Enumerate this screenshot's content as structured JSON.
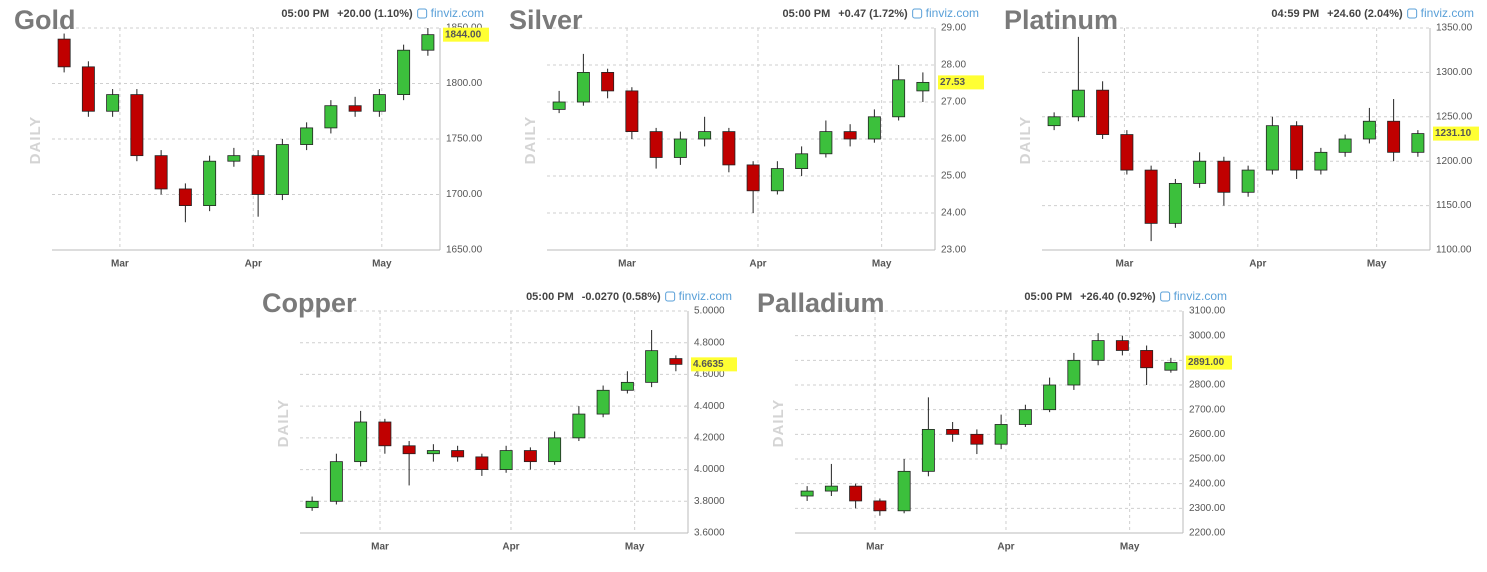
{
  "chart_data": [
    {
      "type": "candlestick",
      "title": "Gold",
      "time": "05:00 PM",
      "change": "+20.00 (1.10%)",
      "change_color": "#1a9c1a",
      "source": "finviz.com",
      "axis_label": "DAILY",
      "last_label": "1844.00",
      "up_color": "#3cc03c",
      "down_color": "#c00000",
      "open": [
        1840,
        1815,
        1775,
        1790,
        1735,
        1705,
        1690,
        1730,
        1735,
        1700,
        1745,
        1760,
        1780,
        1775,
        1790,
        1830
      ],
      "high": [
        1845,
        1820,
        1795,
        1795,
        1740,
        1710,
        1735,
        1742,
        1740,
        1750,
        1765,
        1785,
        1788,
        1795,
        1835,
        1850
      ],
      "low": [
        1810,
        1770,
        1770,
        1730,
        1700,
        1675,
        1685,
        1725,
        1680,
        1695,
        1740,
        1755,
        1770,
        1770,
        1785,
        1825
      ],
      "close": [
        1815,
        1775,
        1790,
        1735,
        1705,
        1690,
        1730,
        1735,
        1700,
        1745,
        1760,
        1780,
        1775,
        1790,
        1830,
        1844
      ],
      "ylim": [
        1650,
        1850
      ],
      "yticks": [
        {
          "value": 1650,
          "label": "1650.00"
        },
        {
          "value": 1700,
          "label": "1700.00"
        },
        {
          "value": 1750,
          "label": "1750.00"
        },
        {
          "value": 1800,
          "label": "1800.00"
        },
        {
          "value": 1850,
          "label": "1850.00"
        }
      ],
      "xlim": [
        -0.5,
        15.5
      ],
      "xticks": [
        {
          "value": 2.3,
          "label": "Mar"
        },
        {
          "value": 7.8,
          "label": "Apr"
        },
        {
          "value": 13.1,
          "label": "May"
        }
      ],
      "grid": true
    },
    {
      "type": "candlestick",
      "title": "Silver",
      "time": "05:00 PM",
      "change": "+0.47 (1.72%)",
      "change_color": "#1a9c1a",
      "source": "finviz.com",
      "axis_label": "DAILY",
      "last_label": "27.53",
      "up_color": "#3cc03c",
      "down_color": "#c00000",
      "open": [
        26.8,
        27.0,
        27.8,
        27.3,
        26.2,
        25.5,
        26.0,
        26.2,
        25.3,
        24.6,
        25.2,
        25.6,
        26.2,
        26.0,
        26.6,
        27.3
      ],
      "high": [
        27.3,
        28.3,
        27.9,
        27.4,
        26.3,
        26.2,
        26.6,
        26.3,
        25.4,
        25.4,
        25.8,
        26.5,
        26.4,
        26.8,
        28.0,
        27.8
      ],
      "low": [
        26.7,
        26.9,
        27.1,
        26.0,
        25.2,
        25.3,
        25.8,
        25.1,
        24.0,
        24.5,
        25.0,
        25.5,
        25.8,
        25.9,
        26.5,
        27.0
      ],
      "close": [
        27.0,
        27.8,
        27.3,
        26.2,
        25.5,
        26.0,
        26.2,
        25.3,
        24.6,
        25.2,
        25.6,
        26.2,
        26.0,
        26.6,
        27.6,
        27.53
      ],
      "ylim": [
        23,
        29
      ],
      "yticks": [
        {
          "value": 23,
          "label": "23.00"
        },
        {
          "value": 24,
          "label": "24.00"
        },
        {
          "value": 25,
          "label": "25.00"
        },
        {
          "value": 26,
          "label": "26.00"
        },
        {
          "value": 27,
          "label": "27.00"
        },
        {
          "value": 28,
          "label": "28.00"
        },
        {
          "value": 29,
          "label": "29.00"
        }
      ],
      "xlim": [
        -0.5,
        15.5
      ],
      "xticks": [
        {
          "value": 2.8,
          "label": "Mar"
        },
        {
          "value": 8.2,
          "label": "Apr"
        },
        {
          "value": 13.3,
          "label": "May"
        }
      ],
      "grid": true
    },
    {
      "type": "candlestick",
      "title": "Platinum",
      "time": "04:59 PM",
      "change": "+24.60 (2.04%)",
      "change_color": "#1a9c1a",
      "source": "finviz.com",
      "axis_label": "DAILY",
      "last_label": "1231.10",
      "up_color": "#3cc03c",
      "down_color": "#c00000",
      "open": [
        1240,
        1250,
        1280,
        1230,
        1190,
        1130,
        1175,
        1200,
        1165,
        1190,
        1240,
        1190,
        1210,
        1225,
        1245,
        1210
      ],
      "high": [
        1255,
        1340,
        1290,
        1235,
        1195,
        1180,
        1210,
        1205,
        1195,
        1250,
        1245,
        1215,
        1230,
        1260,
        1270,
        1235
      ],
      "low": [
        1235,
        1245,
        1225,
        1185,
        1110,
        1125,
        1170,
        1150,
        1160,
        1185,
        1180,
        1185,
        1205,
        1220,
        1200,
        1205
      ],
      "close": [
        1250,
        1280,
        1230,
        1190,
        1130,
        1175,
        1200,
        1165,
        1190,
        1240,
        1190,
        1210,
        1225,
        1245,
        1210,
        1231.1
      ],
      "ylim": [
        1100,
        1350
      ],
      "yticks": [
        {
          "value": 1100,
          "label": "1100.00"
        },
        {
          "value": 1150,
          "label": "1150.00"
        },
        {
          "value": 1200,
          "label": "1200.00"
        },
        {
          "value": 1250,
          "label": "1250.00"
        },
        {
          "value": 1300,
          "label": "1300.00"
        },
        {
          "value": 1350,
          "label": "1350.00"
        }
      ],
      "xlim": [
        -0.5,
        15.5
      ],
      "xticks": [
        {
          "value": 2.9,
          "label": "Mar"
        },
        {
          "value": 8.4,
          "label": "Apr"
        },
        {
          "value": 13.3,
          "label": "May"
        }
      ],
      "grid": true
    },
    {
      "type": "candlestick",
      "title": "Copper",
      "time": "05:00 PM",
      "change": "-0.0270 (0.58%)",
      "change_color": "#d01010",
      "source": "finviz.com",
      "axis_label": "DAILY",
      "last_label": "4.6635",
      "up_color": "#3cc03c",
      "down_color": "#c00000",
      "open": [
        3.76,
        3.8,
        4.05,
        4.3,
        4.15,
        4.1,
        4.12,
        4.08,
        4.0,
        4.12,
        4.05,
        4.2,
        4.35,
        4.5,
        4.55,
        4.7
      ],
      "high": [
        3.83,
        4.1,
        4.37,
        4.32,
        4.18,
        4.16,
        4.15,
        4.1,
        4.15,
        4.14,
        4.24,
        4.4,
        4.53,
        4.62,
        4.88,
        4.72
      ],
      "low": [
        3.74,
        3.78,
        4.02,
        4.1,
        3.9,
        4.05,
        4.05,
        3.96,
        3.98,
        4.0,
        4.03,
        4.18,
        4.33,
        4.48,
        4.52,
        4.62
      ],
      "close": [
        3.8,
        4.05,
        4.3,
        4.15,
        4.1,
        4.12,
        4.08,
        4.0,
        4.12,
        4.05,
        4.2,
        4.35,
        4.5,
        4.55,
        4.75,
        4.6635
      ],
      "ylim": [
        3.6,
        5.0
      ],
      "yticks": [
        {
          "value": 3.6,
          "label": "3.6000"
        },
        {
          "value": 3.8,
          "label": "3.8000"
        },
        {
          "value": 4.0,
          "label": "4.0000"
        },
        {
          "value": 4.2,
          "label": "4.2000"
        },
        {
          "value": 4.4,
          "label": "4.4000"
        },
        {
          "value": 4.6,
          "label": "4.6000"
        },
        {
          "value": 4.8,
          "label": "4.8000"
        },
        {
          "value": 5.0,
          "label": "5.0000"
        }
      ],
      "xlim": [
        -0.5,
        15.5
      ],
      "xticks": [
        {
          "value": 2.8,
          "label": "Mar"
        },
        {
          "value": 8.2,
          "label": "Apr"
        },
        {
          "value": 13.3,
          "label": "May"
        }
      ],
      "grid": true
    },
    {
      "type": "candlestick",
      "title": "Palladium",
      "time": "05:00 PM",
      "change": "+26.40 (0.92%)",
      "change_color": "#1a9c1a",
      "source": "finviz.com",
      "axis_label": "DAILY",
      "last_label": "2891.00",
      "up_color": "#3cc03c",
      "down_color": "#c00000",
      "open": [
        2350,
        2370,
        2390,
        2330,
        2290,
        2450,
        2620,
        2600,
        2560,
        2640,
        2700,
        2800,
        2900,
        2980,
        2940,
        2860
      ],
      "high": [
        2390,
        2480,
        2400,
        2340,
        2500,
        2750,
        2650,
        2620,
        2680,
        2720,
        2830,
        2930,
        3010,
        3000,
        2960,
        2910
      ],
      "low": [
        2330,
        2350,
        2300,
        2270,
        2280,
        2430,
        2570,
        2520,
        2540,
        2630,
        2690,
        2780,
        2880,
        2920,
        2800,
        2850
      ],
      "close": [
        2370,
        2390,
        2330,
        2290,
        2450,
        2620,
        2600,
        2560,
        2640,
        2700,
        2800,
        2900,
        2980,
        2940,
        2870,
        2891
      ],
      "ylim": [
        2200,
        3100
      ],
      "yticks": [
        {
          "value": 2200,
          "label": "2200.00"
        },
        {
          "value": 2300,
          "label": "2300.00"
        },
        {
          "value": 2400,
          "label": "2400.00"
        },
        {
          "value": 2500,
          "label": "2500.00"
        },
        {
          "value": 2600,
          "label": "2600.00"
        },
        {
          "value": 2700,
          "label": "2700.00"
        },
        {
          "value": 2800,
          "label": "2800.00"
        },
        {
          "value": 2900,
          "label": "2900.00"
        },
        {
          "value": 3000,
          "label": "3000.00"
        },
        {
          "value": 3100,
          "label": "3100.00"
        }
      ],
      "xlim": [
        -0.5,
        15.5
      ],
      "xticks": [
        {
          "value": 2.8,
          "label": "Mar"
        },
        {
          "value": 8.2,
          "label": "Apr"
        },
        {
          "value": 13.3,
          "label": "May"
        }
      ],
      "grid": true
    }
  ]
}
